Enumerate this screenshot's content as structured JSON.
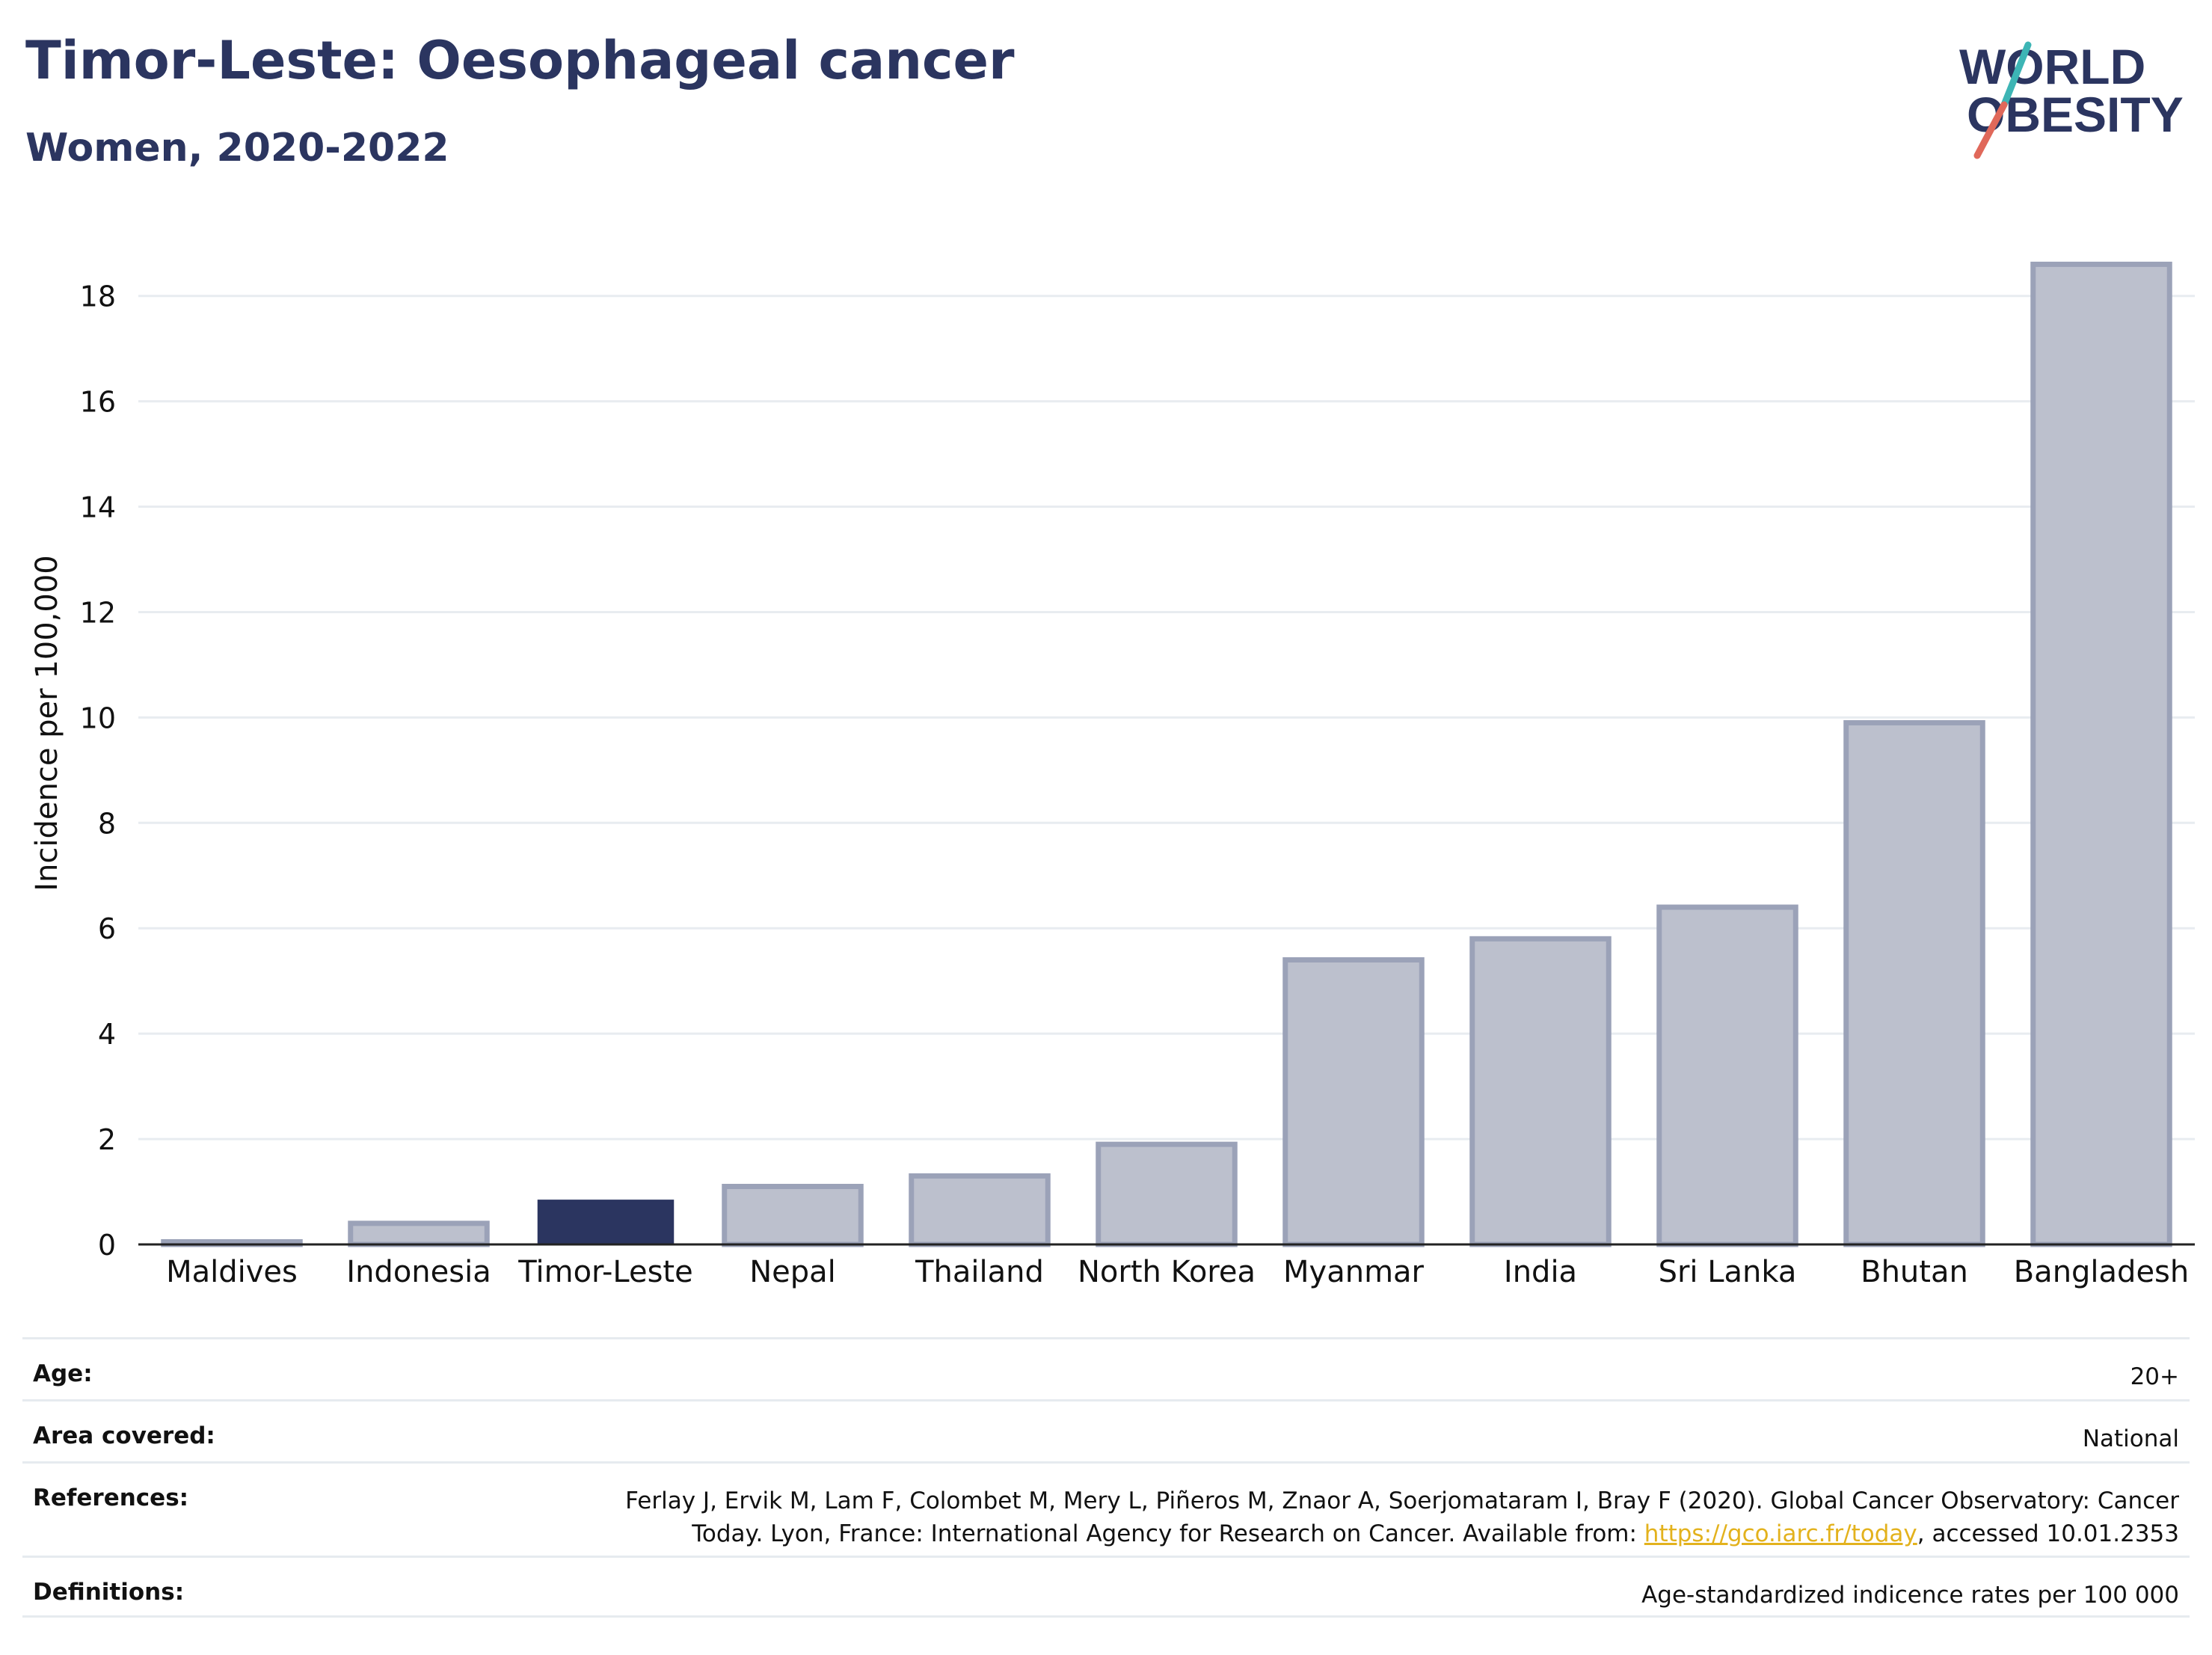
{
  "title": "Timor-Leste: Oesophageal cancer",
  "subtitle": "Women, 2020-2022",
  "logo": {
    "line1": "WORLD",
    "line2": "OBESITY",
    "colors": [
      "#2b3560",
      "#3db5b5",
      "#e0685a"
    ]
  },
  "chart_data": {
    "type": "bar",
    "categories": [
      "Maldives",
      "Indonesia",
      "Timor-Leste",
      "Nepal",
      "Thailand",
      "North Korea",
      "Myanmar",
      "India",
      "Sri Lanka",
      "Bhutan",
      "Bangladesh"
    ],
    "values": [
      0.05,
      0.4,
      0.85,
      1.1,
      1.3,
      1.9,
      5.4,
      5.8,
      6.4,
      9.9,
      18.6
    ],
    "highlight": "Timor-Leste",
    "ylabel": "Incidence per 100,000",
    "ylim": [
      0,
      19.5
    ],
    "yticks": [
      0,
      2,
      4,
      6,
      8,
      10,
      12,
      14,
      16,
      18
    ],
    "grid": true,
    "colors": {
      "highlight": "#2b3560",
      "other_fill": "#bcc0cd",
      "other_stroke": "#9ba2b8"
    }
  },
  "info": {
    "age_label": "Age:",
    "age_value": "20+",
    "area_label": "Area covered:",
    "area_value": "National",
    "references_label": "References:",
    "references_line1": "Ferlay J, Ervik M, Lam F, Colombet M, Mery L, Piñeros M, Znaor A, Soerjomataram I, Bray F (2020). Global Cancer Observatory: Cancer",
    "references_line2_pre": "Today. Lyon, France: International Agency for Research on Cancer. Available from: ",
    "references_link": "https://gco.iarc.fr/today",
    "references_line2_post": ", accessed 10.01.2353",
    "definitions_label": "Definitions:",
    "definitions_value": "Age-standardized indicence rates per 100 000"
  }
}
